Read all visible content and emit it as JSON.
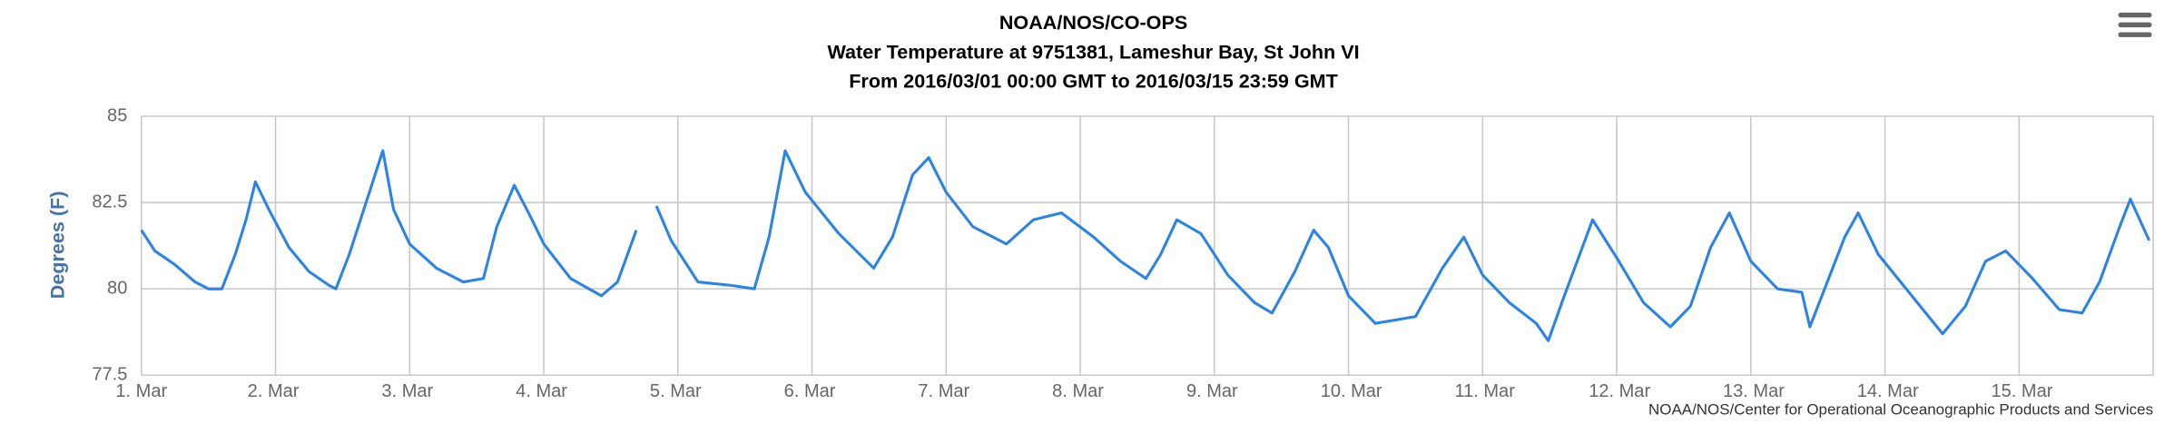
{
  "chart_data": {
    "type": "line",
    "title": "NOAA/NOS/CO-OPS",
    "subtitle": "Water Temperature at 9751381, Lameshur Bay, St John VI",
    "subtitle2": "From 2016/03/01 00:00 GMT to 2016/03/15 23:59 GMT",
    "ylabel": "Degrees (F)",
    "credits": "NOAA/NOS/Center for Operational Oceanographic Products and Services",
    "color": "#2b83e8",
    "grid": true,
    "xlim": [
      0,
      15
    ],
    "xticks": [
      {
        "value": 0,
        "label": "1. Mar"
      },
      {
        "value": 1,
        "label": "2. Mar"
      },
      {
        "value": 2,
        "label": "3. Mar"
      },
      {
        "value": 3,
        "label": "4. Mar"
      },
      {
        "value": 4,
        "label": "5. Mar"
      },
      {
        "value": 5,
        "label": "6. Mar"
      },
      {
        "value": 6,
        "label": "7. Mar"
      },
      {
        "value": 7,
        "label": "8. Mar"
      },
      {
        "value": 8,
        "label": "9. Mar"
      },
      {
        "value": 9,
        "label": "10. Mar"
      },
      {
        "value": 10,
        "label": "11. Mar"
      },
      {
        "value": 11,
        "label": "12. Mar"
      },
      {
        "value": 12,
        "label": "13. Mar"
      },
      {
        "value": 13,
        "label": "14. Mar"
      },
      {
        "value": 14,
        "label": "15. Mar"
      }
    ],
    "ylim": [
      77.5,
      85
    ],
    "yticks": [
      77.5,
      80,
      82.5,
      85
    ],
    "x": [
      0,
      0.1,
      0.25,
      0.4,
      0.5,
      0.6,
      0.7,
      0.78,
      0.85,
      0.95,
      1.1,
      1.25,
      1.4,
      1.45,
      1.55,
      1.65,
      1.8,
      1.88,
      2.0,
      2.2,
      2.4,
      2.55,
      2.65,
      2.78,
      2.9,
      3.0,
      3.2,
      3.43,
      3.55,
      3.69,
      3.76,
      3.84,
      3.95,
      4.15,
      4.4,
      4.57,
      4.68,
      4.8,
      4.95,
      5.2,
      5.46,
      5.6,
      5.75,
      5.87,
      6.0,
      6.2,
      6.45,
      6.65,
      6.86,
      7.1,
      7.3,
      7.49,
      7.6,
      7.72,
      7.9,
      8.1,
      8.3,
      8.43,
      8.6,
      8.74,
      8.85,
      9.0,
      9.2,
      9.5,
      9.7,
      9.86,
      10.0,
      10.2,
      10.4,
      10.49,
      10.6,
      10.82,
      11.0,
      11.2,
      11.4,
      11.55,
      11.7,
      11.84,
      12.0,
      12.2,
      12.38,
      12.44,
      12.55,
      12.7,
      12.8,
      12.95,
      13.2,
      13.43,
      13.6,
      13.75,
      13.9,
      14.1,
      14.3,
      14.47,
      14.6,
      14.75,
      14.83,
      14.97
    ],
    "values": [
      81.7,
      81.1,
      80.7,
      80.2,
      80.0,
      80.0,
      81.0,
      82.0,
      83.1,
      82.3,
      81.2,
      80.5,
      80.1,
      80.0,
      81.0,
      82.2,
      84.0,
      82.3,
      81.3,
      80.6,
      80.2,
      80.3,
      81.8,
      83.0,
      82.1,
      81.3,
      80.3,
      79.8,
      80.2,
      81.7,
      null,
      82.4,
      81.4,
      80.2,
      80.1,
      80.0,
      81.5,
      84.0,
      82.8,
      81.6,
      80.6,
      81.5,
      83.3,
      83.8,
      82.8,
      81.8,
      81.3,
      82.0,
      82.2,
      81.5,
      80.8,
      80.3,
      81.0,
      82.0,
      81.6,
      80.4,
      79.6,
      79.3,
      80.5,
      81.7,
      81.2,
      79.8,
      79.0,
      79.2,
      80.6,
      81.5,
      80.4,
      79.6,
      79.0,
      78.5,
      79.7,
      82.0,
      80.9,
      79.6,
      78.9,
      79.5,
      81.2,
      82.2,
      80.8,
      80.0,
      79.9,
      78.9,
      80.0,
      81.5,
      82.2,
      81.0,
      79.8,
      78.7,
      79.5,
      80.8,
      81.1,
      80.3,
      79.4,
      79.3,
      80.2,
      81.8,
      82.6,
      81.4
    ]
  }
}
